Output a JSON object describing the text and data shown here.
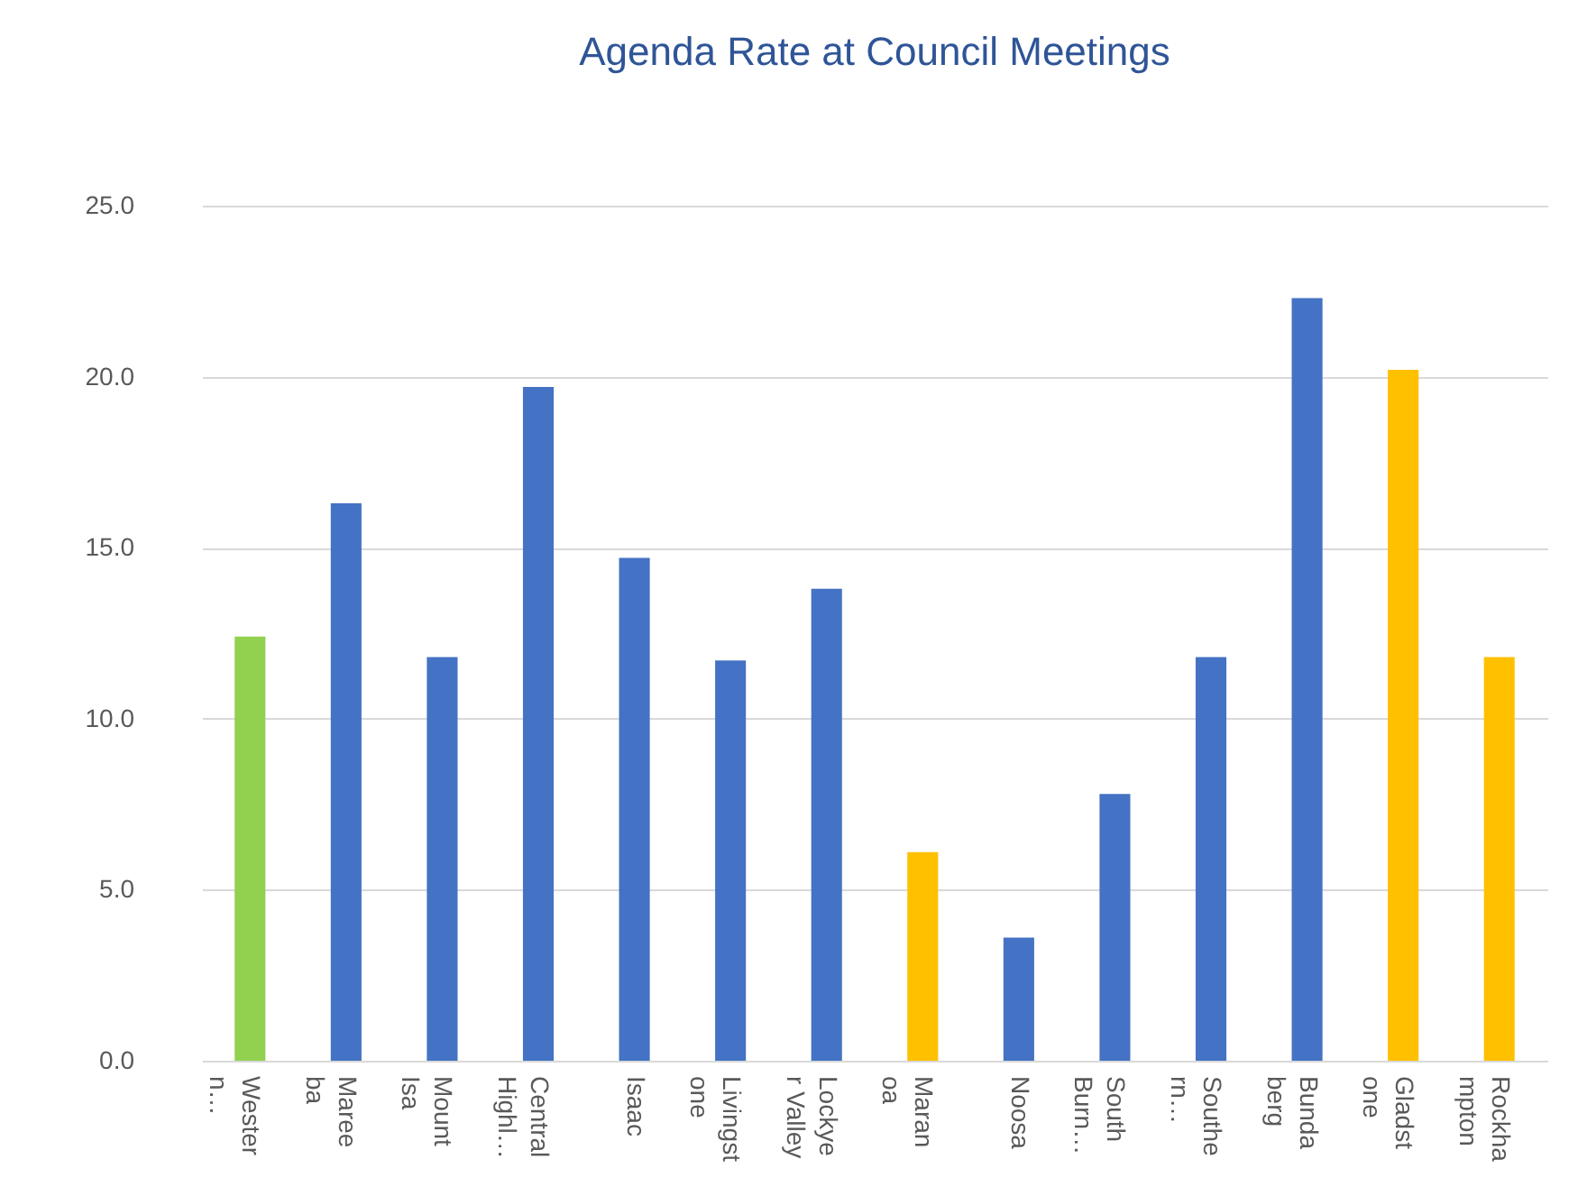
{
  "chart_data": {
    "type": "bar",
    "title": "Agenda Rate at Council Meetings",
    "categories": [
      "Wester\nn…",
      "Maree\nba",
      "Mount\nIsa",
      "Central\nHighl…",
      "Isaac",
      "Livingst\none",
      "Lockye\nr Valley",
      "Maran\noa",
      "Noosa",
      "South\nBurn…",
      "Southe\nrn…",
      "Bunda\nberg",
      "Gladst\none",
      "Rockha\nmpton"
    ],
    "values": [
      12.4,
      16.3,
      11.8,
      19.7,
      14.7,
      11.7,
      13.8,
      6.1,
      3.6,
      7.8,
      11.8,
      22.3,
      20.2,
      11.8
    ],
    "colors": [
      "#92d050",
      "#4472c4",
      "#4472c4",
      "#4472c4",
      "#4472c4",
      "#4472c4",
      "#4472c4",
      "#ffc000",
      "#4472c4",
      "#4472c4",
      "#4472c4",
      "#4472c4",
      "#ffc000",
      "#ffc000"
    ],
    "ylim": [
      0,
      25
    ],
    "yticks": [
      {
        "value": 0,
        "label": "0.0"
      },
      {
        "value": 5,
        "label": "5.0"
      },
      {
        "value": 10,
        "label": "10.0"
      },
      {
        "value": 15,
        "label": "15.0"
      },
      {
        "value": 20,
        "label": "20.0"
      },
      {
        "value": 25,
        "label": "25.0"
      }
    ],
    "grid": "y"
  }
}
